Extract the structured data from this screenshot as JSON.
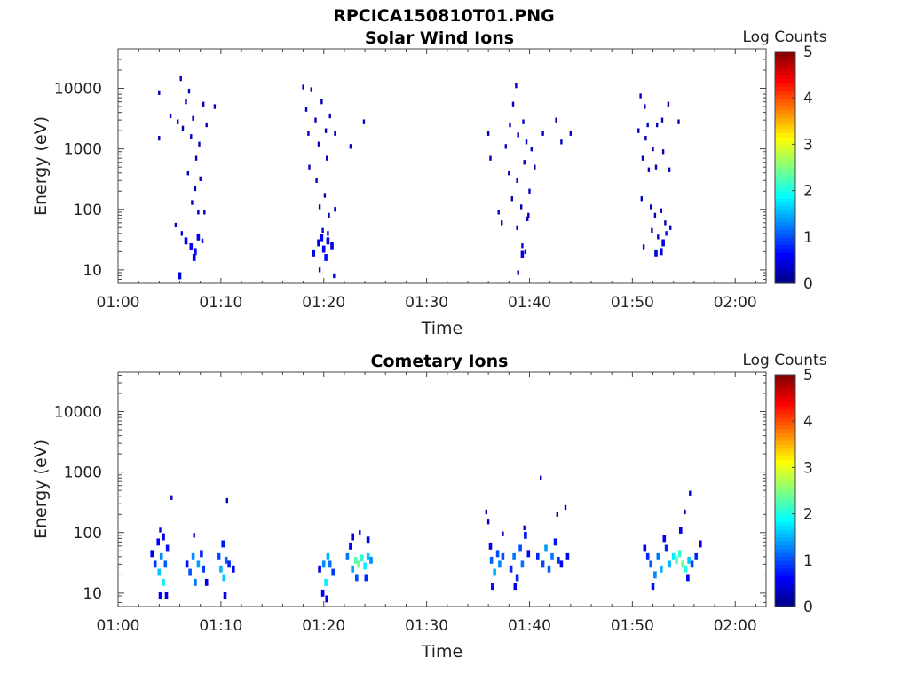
{
  "figure_title": "RPCICA150810T01.PNG",
  "chart_data": [
    {
      "type": "heatmap",
      "title": "Solar Wind Ions",
      "xlabel": "Time",
      "ylabel": "Energy (eV)",
      "x_ticks": [
        "01:00",
        "01:10",
        "01:20",
        "01:30",
        "01:40",
        "01:50",
        "02:00"
      ],
      "xlim_minutes": [
        0,
        63
      ],
      "y_scale": "log",
      "y_ticks": [
        10,
        100,
        1000,
        10000
      ],
      "ylim": [
        6,
        45000
      ],
      "colorbar": {
        "label": "Log Counts",
        "range": [
          0,
          5
        ],
        "ticks": [
          0,
          1,
          2,
          3,
          4,
          5
        ],
        "colormap": "jet"
      },
      "points": [
        [
          4.0,
          8500,
          0.3
        ],
        [
          4.0,
          1500,
          0.3
        ],
        [
          5.1,
          3500,
          0.3
        ],
        [
          5.8,
          2800,
          0.3
        ],
        [
          6.1,
          14500,
          0.3
        ],
        [
          6.3,
          2200,
          0.3
        ],
        [
          6.6,
          6000,
          0.3
        ],
        [
          6.9,
          9000,
          0.3
        ],
        [
          7.1,
          1600,
          0.3
        ],
        [
          7.3,
          3200,
          0.3
        ],
        [
          7.6,
          700,
          0.3
        ],
        [
          7.9,
          1200,
          0.3
        ],
        [
          8.3,
          5500,
          0.3
        ],
        [
          8.6,
          2500,
          0.3
        ],
        [
          9.4,
          5000,
          0.3
        ],
        [
          6.8,
          400,
          0.3
        ],
        [
          7.5,
          220,
          0.3
        ],
        [
          8.0,
          320,
          0.3
        ],
        [
          7.2,
          130,
          0.3
        ],
        [
          7.8,
          90,
          0.3
        ],
        [
          8.4,
          90,
          0.3
        ],
        [
          5.6,
          55,
          0.4
        ],
        [
          6.2,
          40,
          0.4
        ],
        [
          6.6,
          30,
          0.5
        ],
        [
          7.1,
          24,
          0.6
        ],
        [
          7.5,
          20,
          0.7
        ],
        [
          7.8,
          35,
          0.5
        ],
        [
          8.2,
          30,
          0.4
        ],
        [
          6.0,
          8,
          0.5
        ],
        [
          7.4,
          16,
          0.6
        ],
        [
          18.0,
          10500,
          0.3
        ],
        [
          18.3,
          4500,
          0.3
        ],
        [
          18.5,
          1800,
          0.3
        ],
        [
          18.8,
          9500,
          0.3
        ],
        [
          19.2,
          3000,
          0.3
        ],
        [
          19.5,
          1200,
          0.3
        ],
        [
          19.8,
          6000,
          0.3
        ],
        [
          20.2,
          2000,
          0.3
        ],
        [
          20.6,
          3500,
          0.3
        ],
        [
          20.3,
          700,
          0.3
        ],
        [
          21.1,
          1800,
          0.3
        ],
        [
          22.6,
          1100,
          0.3
        ],
        [
          23.9,
          2800,
          0.3
        ],
        [
          18.6,
          500,
          0.3
        ],
        [
          19.3,
          300,
          0.3
        ],
        [
          20.1,
          170,
          0.3
        ],
        [
          19.6,
          110,
          0.3
        ],
        [
          20.5,
          80,
          0.3
        ],
        [
          21.1,
          100,
          0.3
        ],
        [
          19.9,
          45,
          0.4
        ],
        [
          19.5,
          28,
          0.5
        ],
        [
          20.0,
          22,
          0.6
        ],
        [
          20.4,
          30,
          0.5
        ],
        [
          20.8,
          25,
          0.5
        ],
        [
          20.2,
          16,
          0.7
        ],
        [
          19.0,
          19,
          0.5
        ],
        [
          19.6,
          10,
          0.4
        ],
        [
          21.0,
          8,
          0.4
        ],
        [
          20.4,
          40,
          0.4
        ],
        [
          19.8,
          34,
          0.6
        ],
        [
          38.7,
          11000,
          0.3
        ],
        [
          38.4,
          5500,
          0.3
        ],
        [
          38.1,
          2500,
          0.3
        ],
        [
          38.9,
          1700,
          0.3
        ],
        [
          39.4,
          2800,
          0.3
        ],
        [
          39.7,
          1300,
          0.3
        ],
        [
          40.2,
          1000,
          0.3
        ],
        [
          40.5,
          500,
          0.3
        ],
        [
          36.0,
          1800,
          0.3
        ],
        [
          36.2,
          700,
          0.3
        ],
        [
          37.7,
          1100,
          0.3
        ],
        [
          38.0,
          400,
          0.3
        ],
        [
          38.8,
          300,
          0.3
        ],
        [
          39.5,
          600,
          0.3
        ],
        [
          40.0,
          200,
          0.3
        ],
        [
          41.3,
          1800,
          0.3
        ],
        [
          42.6,
          3000,
          0.3
        ],
        [
          43.1,
          1300,
          0.3
        ],
        [
          44.0,
          1800,
          0.3
        ],
        [
          38.3,
          150,
          0.3
        ],
        [
          39.2,
          110,
          0.3
        ],
        [
          39.8,
          70,
          0.3
        ],
        [
          37.0,
          90,
          0.3
        ],
        [
          37.3,
          60,
          0.3
        ],
        [
          38.8,
          50,
          0.3
        ],
        [
          39.3,
          25,
          0.4
        ],
        [
          39.6,
          20,
          0.4
        ],
        [
          38.9,
          9,
          0.4
        ],
        [
          39.9,
          80,
          0.3
        ],
        [
          39.3,
          18,
          0.5
        ],
        [
          50.8,
          7500,
          0.3
        ],
        [
          51.2,
          5000,
          0.3
        ],
        [
          51.5,
          2500,
          0.3
        ],
        [
          50.6,
          2000,
          0.3
        ],
        [
          51.3,
          1500,
          0.3
        ],
        [
          52.0,
          1000,
          0.3
        ],
        [
          52.4,
          2500,
          0.3
        ],
        [
          52.9,
          3000,
          0.3
        ],
        [
          53.5,
          5500,
          0.3
        ],
        [
          54.5,
          2800,
          0.3
        ],
        [
          51.0,
          700,
          0.3
        ],
        [
          51.6,
          450,
          0.3
        ],
        [
          52.3,
          500,
          0.3
        ],
        [
          53.0,
          900,
          0.3
        ],
        [
          53.6,
          450,
          0.3
        ],
        [
          50.9,
          150,
          0.3
        ],
        [
          51.8,
          110,
          0.3
        ],
        [
          52.2,
          80,
          0.3
        ],
        [
          52.8,
          95,
          0.3
        ],
        [
          53.2,
          60,
          0.3
        ],
        [
          51.9,
          45,
          0.4
        ],
        [
          52.5,
          35,
          0.4
        ],
        [
          53.0,
          28,
          0.5
        ],
        [
          51.1,
          24,
          0.4
        ],
        [
          52.3,
          19,
          0.5
        ],
        [
          52.8,
          20,
          0.5
        ],
        [
          53.3,
          40,
          0.4
        ],
        [
          53.7,
          50,
          0.4
        ]
      ]
    },
    {
      "type": "heatmap",
      "title": "Cometary Ions",
      "xlabel": "Time",
      "ylabel": "Energy (eV)",
      "x_ticks": [
        "01:00",
        "01:10",
        "01:20",
        "01:30",
        "01:40",
        "01:50",
        "02:00"
      ],
      "xlim_minutes": [
        0,
        63
      ],
      "y_scale": "log",
      "y_ticks": [
        10,
        100,
        1000,
        10000
      ],
      "ylim": [
        6,
        45000
      ],
      "colorbar": {
        "label": "Log Counts",
        "range": [
          0,
          5
        ],
        "ticks": [
          0,
          1,
          2,
          3,
          4,
          5
        ],
        "colormap": "jet"
      },
      "points": [
        [
          3.3,
          45,
          0.5
        ],
        [
          3.6,
          30,
          0.9
        ],
        [
          3.9,
          70,
          0.6
        ],
        [
          4.0,
          22,
          1.6
        ],
        [
          4.2,
          40,
          1.3
        ],
        [
          4.4,
          15,
          1.8
        ],
        [
          4.6,
          30,
          1.1
        ],
        [
          4.8,
          55,
          0.7
        ],
        [
          4.1,
          110,
          0.4
        ],
        [
          4.4,
          85,
          0.5
        ],
        [
          4.1,
          9,
          0.6
        ],
        [
          4.7,
          9,
          0.5
        ],
        [
          5.2,
          380,
          0.3
        ],
        [
          6.7,
          30,
          0.7
        ],
        [
          7.0,
          22,
          1.0
        ],
        [
          7.3,
          40,
          1.3
        ],
        [
          7.5,
          15,
          1.2
        ],
        [
          7.8,
          30,
          1.4
        ],
        [
          8.1,
          45,
          0.8
        ],
        [
          8.3,
          25,
          0.9
        ],
        [
          7.4,
          90,
          0.3
        ],
        [
          8.6,
          15,
          0.5
        ],
        [
          9.8,
          40,
          1.0
        ],
        [
          10.0,
          25,
          1.5
        ],
        [
          10.3,
          18,
          1.6
        ],
        [
          10.5,
          35,
          1.1
        ],
        [
          10.8,
          30,
          0.8
        ],
        [
          11.2,
          25,
          0.6
        ],
        [
          10.2,
          65,
          0.7
        ],
        [
          10.4,
          9,
          0.5
        ],
        [
          10.6,
          340,
          0.3
        ],
        [
          19.6,
          25,
          0.5
        ],
        [
          20.0,
          30,
          1.3
        ],
        [
          20.2,
          15,
          1.8
        ],
        [
          20.4,
          40,
          1.5
        ],
        [
          20.6,
          30,
          1.2
        ],
        [
          20.9,
          22,
          0.9
        ],
        [
          19.9,
          10,
          0.6
        ],
        [
          20.3,
          8,
          0.5
        ],
        [
          22.3,
          40,
          1.2
        ],
        [
          22.6,
          60,
          0.6
        ],
        [
          22.8,
          25,
          1.4
        ],
        [
          23.1,
          35,
          2.3
        ],
        [
          23.4,
          30,
          2.4
        ],
        [
          23.7,
          38,
          2.1
        ],
        [
          24.0,
          28,
          1.8
        ],
        [
          24.3,
          40,
          1.6
        ],
        [
          24.6,
          35,
          1.3
        ],
        [
          22.8,
          85,
          0.5
        ],
        [
          23.5,
          100,
          0.4
        ],
        [
          24.3,
          75,
          0.5
        ],
        [
          23.2,
          18,
          1.0
        ],
        [
          24.1,
          18,
          0.8
        ],
        [
          35.8,
          220,
          0.3
        ],
        [
          36.0,
          150,
          0.3
        ],
        [
          36.2,
          60,
          0.5
        ],
        [
          36.3,
          35,
          1.1
        ],
        [
          36.6,
          22,
          1.5
        ],
        [
          36.9,
          45,
          1.0
        ],
        [
          37.1,
          30,
          1.3
        ],
        [
          37.4,
          40,
          1.0
        ],
        [
          36.4,
          13,
          0.7
        ],
        [
          37.4,
          95,
          0.3
        ],
        [
          38.2,
          25,
          0.8
        ],
        [
          38.5,
          40,
          1.2
        ],
        [
          38.8,
          18,
          0.8
        ],
        [
          39.1,
          55,
          1.0
        ],
        [
          39.3,
          30,
          1.2
        ],
        [
          39.6,
          90,
          0.7
        ],
        [
          39.9,
          45,
          0.6
        ],
        [
          38.6,
          13,
          0.5
        ],
        [
          39.5,
          120,
          0.3
        ],
        [
          41.1,
          800,
          0.3
        ],
        [
          40.8,
          40,
          0.8
        ],
        [
          41.3,
          30,
          1.0
        ],
        [
          41.6,
          55,
          1.4
        ],
        [
          41.9,
          25,
          1.1
        ],
        [
          42.2,
          40,
          1.2
        ],
        [
          42.5,
          70,
          0.7
        ],
        [
          42.8,
          35,
          0.9
        ],
        [
          43.1,
          30,
          0.6
        ],
        [
          43.7,
          40,
          0.5
        ],
        [
          42.7,
          200,
          0.3
        ],
        [
          43.5,
          260,
          0.3
        ],
        [
          51.2,
          55,
          0.5
        ],
        [
          51.5,
          40,
          0.8
        ],
        [
          51.8,
          30,
          1.1
        ],
        [
          52.2,
          20,
          1.3
        ],
        [
          52.5,
          40,
          1.2
        ],
        [
          52.8,
          25,
          1.5
        ],
        [
          53.1,
          80,
          0.5
        ],
        [
          53.3,
          55,
          0.8
        ],
        [
          53.6,
          30,
          1.5
        ],
        [
          54.0,
          40,
          1.8
        ],
        [
          54.3,
          35,
          2.3
        ],
        [
          54.6,
          45,
          2.1
        ],
        [
          54.9,
          30,
          2.4
        ],
        [
          55.2,
          25,
          2.0
        ],
        [
          55.5,
          35,
          1.6
        ],
        [
          55.8,
          30,
          1.0
        ],
        [
          56.2,
          40,
          0.8
        ],
        [
          56.6,
          65,
          0.5
        ],
        [
          54.7,
          110,
          0.5
        ],
        [
          55.1,
          220,
          0.3
        ],
        [
          55.6,
          450,
          0.3
        ],
        [
          52.0,
          13,
          0.7
        ],
        [
          55.4,
          18,
          0.6
        ]
      ]
    }
  ]
}
